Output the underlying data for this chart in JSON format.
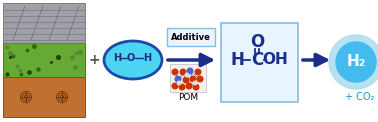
{
  "bg_color": "#ffffff",
  "arrow_color": "#1a2e8a",
  "ellipse_face": "#4dd4f0",
  "ellipse_edge": "#1a4aaa",
  "formic_acid_box_face": "#e8f4ff",
  "formic_acid_box_edge": "#88bbdd",
  "h2_ball_face": "#44bbee",
  "h2_ball_glow": "#aaddee",
  "additive_box_face": "#e8f4ff",
  "additive_box_edge": "#88bbdd",
  "text_dark_blue": "#1a2e8a",
  "text_cyan": "#2299bb",
  "plus_color": "#555555",
  "bond_color": "#1a2e8a",
  "h2_label": "H₂",
  "co2_plus_label": "+ CO₂",
  "additive_label": "Additive",
  "pom_label": "POM",
  "plus_label": "+",
  "h_atom": "H",
  "o_atom": "O",
  "c_atom": "C",
  "oh_group": "OH",
  "biomass_top_color": "#a0a0a8",
  "biomass_mid_color": "#66aa33",
  "biomass_bot_color": "#c07030",
  "biomass_top_edge": "#707078",
  "biomass_mid_edge": "#446622",
  "biomass_bot_edge": "#7a4010"
}
